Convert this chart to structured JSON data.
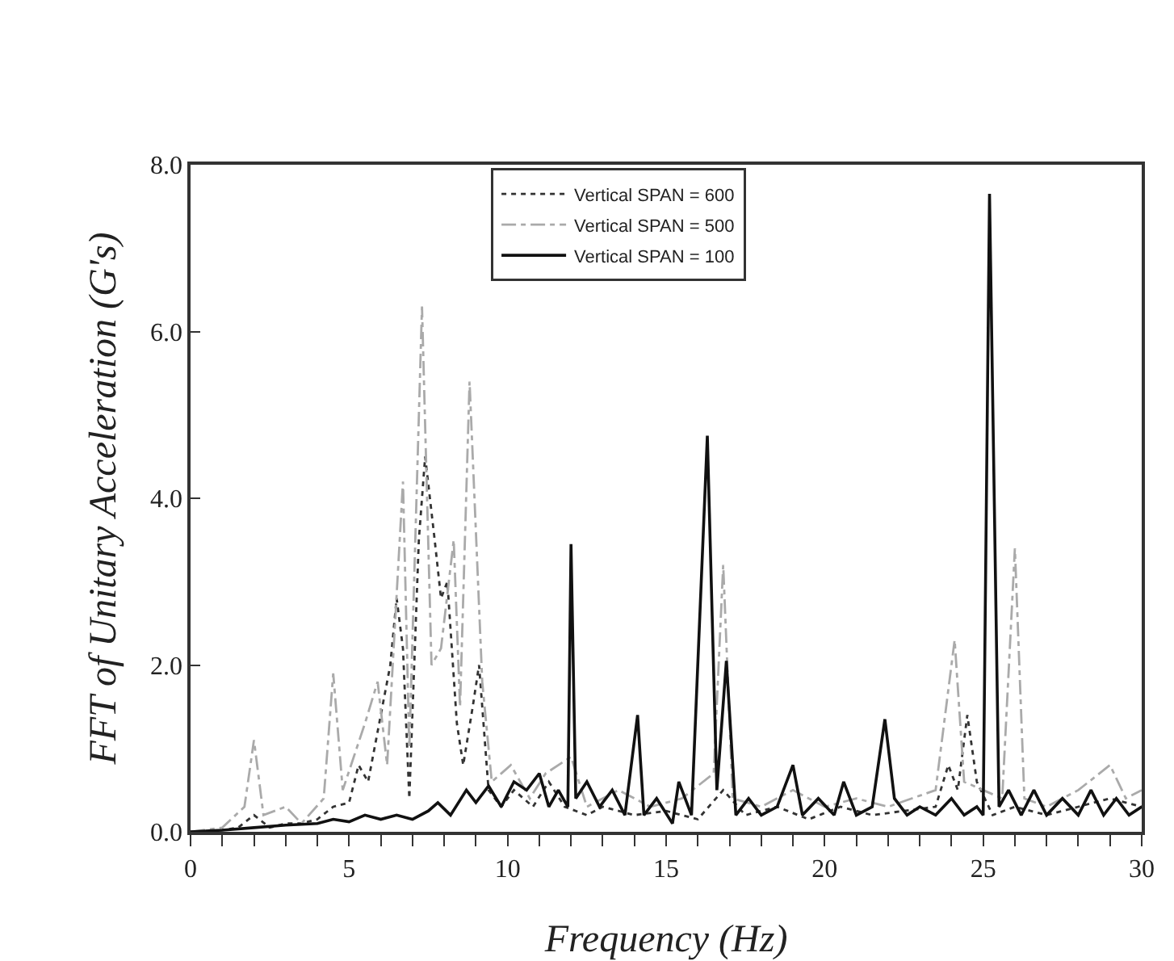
{
  "chart_data": {
    "type": "line",
    "xlabel": "Frequency (Hz)",
    "ylabel": "FFT of Unitary Acceleration (G's)",
    "xlim": [
      0,
      30
    ],
    "ylim": [
      0,
      8
    ],
    "xticks": [
      0,
      {
        "value": 1,
        "label": null
      },
      {
        "value": 2,
        "label": null
      },
      {
        "value": 3,
        "label": null
      },
      {
        "value": 4,
        "label": null
      },
      5,
      {
        "value": 6,
        "label": null
      },
      {
        "value": 7,
        "label": null
      },
      {
        "value": 8,
        "label": null
      },
      {
        "value": 9,
        "label": null
      },
      10,
      {
        "value": 11,
        "label": null
      },
      {
        "value": 12,
        "label": null
      },
      {
        "value": 13,
        "label": null
      },
      {
        "value": 14,
        "label": null
      },
      15,
      {
        "value": 16,
        "label": null
      },
      {
        "value": 17,
        "label": null
      },
      {
        "value": 18,
        "label": null
      },
      {
        "value": 19,
        "label": null
      },
      20,
      {
        "value": 21,
        "label": null
      },
      {
        "value": 22,
        "label": null
      },
      {
        "value": 23,
        "label": null
      },
      {
        "value": 24,
        "label": null
      },
      25,
      {
        "value": 26,
        "label": null
      },
      {
        "value": 27,
        "label": null
      },
      {
        "value": 28,
        "label": null
      },
      {
        "value": 29,
        "label": null
      },
      30
    ],
    "yticks": [
      {
        "value": 0,
        "label": "0.0"
      },
      {
        "value": 2,
        "label": "2.0"
      },
      {
        "value": 4,
        "label": "4.0"
      },
      {
        "value": 6,
        "label": "6.0"
      },
      {
        "value": 8,
        "label": "8.0"
      }
    ],
    "grid": false,
    "legend": "top",
    "marker": "none",
    "series": [
      {
        "name": "Vertical SPAN = 600",
        "color": "#333333",
        "line_style": "dotted",
        "x": [
          0,
          1,
          1.5,
          2,
          2.5,
          3,
          3.5,
          4,
          4.5,
          5,
          5.3,
          5.6,
          6,
          6.3,
          6.5,
          6.7,
          6.9,
          7.2,
          7.4,
          7.7,
          7.9,
          8.1,
          8.4,
          8.6,
          8.9,
          9.1,
          9.4,
          9.8,
          10.2,
          10.8,
          11.3,
          11.8,
          12.5,
          13,
          14,
          15,
          16,
          16.8,
          17.5,
          18.5,
          19.5,
          20.5,
          21.5,
          22.5,
          23.5,
          23.9,
          24.2,
          24.5,
          24.8,
          25.3,
          26,
          27,
          28,
          29,
          30
        ],
        "values": [
          0,
          0.02,
          0.05,
          0.2,
          0.05,
          0.1,
          0.1,
          0.15,
          0.3,
          0.35,
          0.8,
          0.6,
          1.4,
          2.0,
          2.8,
          2.2,
          0.4,
          3.5,
          4.5,
          3.5,
          2.8,
          3.0,
          1.3,
          0.8,
          1.5,
          2.0,
          0.5,
          0.3,
          0.5,
          0.3,
          0.6,
          0.3,
          0.2,
          0.3,
          0.2,
          0.25,
          0.15,
          0.5,
          0.2,
          0.3,
          0.15,
          0.3,
          0.2,
          0.25,
          0.3,
          0.8,
          0.5,
          1.4,
          0.6,
          0.2,
          0.3,
          0.2,
          0.3,
          0.4,
          0.3
        ]
      },
      {
        "name": "Vertical SPAN = 500",
        "color": "#aaaaaa",
        "line_style": "dashdot",
        "x": [
          0,
          1,
          1.7,
          2.0,
          2.3,
          3,
          3.5,
          4.2,
          4.5,
          4.8,
          5.5,
          5.9,
          6.2,
          6.7,
          6.9,
          7.3,
          7.6,
          7.9,
          8.3,
          8.5,
          8.8,
          9.2,
          9.5,
          10.1,
          10.7,
          11.2,
          12.0,
          12.5,
          13.5,
          14.5,
          15.5,
          16.5,
          16.8,
          17.1,
          18,
          19,
          20,
          21,
          22,
          23.5,
          24.1,
          24.4,
          25,
          25.6,
          26.0,
          26.3,
          27,
          28,
          29,
          29.5,
          30
        ],
        "values": [
          0,
          0.05,
          0.3,
          1.1,
          0.2,
          0.3,
          0.1,
          0.4,
          1.9,
          0.5,
          1.3,
          1.8,
          0.8,
          4.2,
          1.0,
          6.3,
          2.0,
          2.2,
          3.5,
          1.5,
          5.4,
          1.8,
          0.6,
          0.8,
          0.4,
          0.7,
          0.9,
          0.3,
          0.5,
          0.3,
          0.4,
          0.7,
          3.2,
          0.4,
          0.3,
          0.5,
          0.3,
          0.4,
          0.3,
          0.5,
          2.3,
          0.6,
          0.5,
          0.4,
          3.4,
          0.4,
          0.3,
          0.5,
          0.8,
          0.4,
          0.5
        ]
      },
      {
        "name": "Vertical SPAN = 100",
        "color": "#111111",
        "line_style": "solid",
        "x": [
          0,
          1,
          2,
          3,
          4,
          4.5,
          5,
          5.5,
          6,
          6.5,
          7,
          7.5,
          7.8,
          8.2,
          8.7,
          9.0,
          9.4,
          9.8,
          10.2,
          10.6,
          11.0,
          11.3,
          11.6,
          11.9,
          12.0,
          12.15,
          12.5,
          12.9,
          13.3,
          13.7,
          14.1,
          14.3,
          14.7,
          15.2,
          15.4,
          15.8,
          16.3,
          16.6,
          16.9,
          17.2,
          17.6,
          18.0,
          18.5,
          19.0,
          19.3,
          19.8,
          20.3,
          20.6,
          21.0,
          21.5,
          21.9,
          22.2,
          22.6,
          23.0,
          23.5,
          24.0,
          24.4,
          24.8,
          25.0,
          25.2,
          25.5,
          25.8,
          26.2,
          26.6,
          27.0,
          27.5,
          28.0,
          28.4,
          28.8,
          29.2,
          29.6,
          30
        ],
        "values": [
          0,
          0.02,
          0.05,
          0.08,
          0.1,
          0.15,
          0.12,
          0.2,
          0.15,
          0.2,
          0.15,
          0.25,
          0.35,
          0.2,
          0.5,
          0.35,
          0.55,
          0.3,
          0.6,
          0.5,
          0.7,
          0.3,
          0.5,
          0.3,
          3.45,
          0.4,
          0.6,
          0.3,
          0.5,
          0.2,
          1.4,
          0.2,
          0.4,
          0.1,
          0.6,
          0.2,
          4.75,
          0.5,
          2.05,
          0.2,
          0.4,
          0.2,
          0.3,
          0.8,
          0.2,
          0.4,
          0.2,
          0.6,
          0.2,
          0.3,
          1.35,
          0.4,
          0.2,
          0.3,
          0.2,
          0.4,
          0.2,
          0.3,
          0.2,
          7.65,
          0.3,
          0.5,
          0.2,
          0.5,
          0.2,
          0.4,
          0.2,
          0.5,
          0.2,
          0.4,
          0.2,
          0.3
        ]
      }
    ]
  }
}
